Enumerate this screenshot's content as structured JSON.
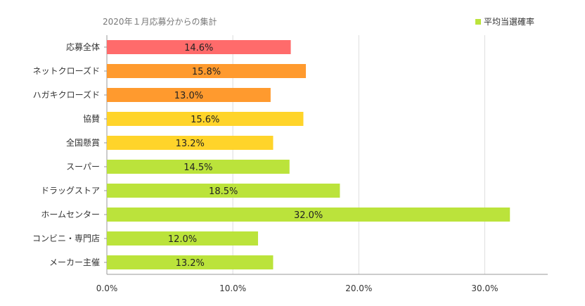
{
  "header": {
    "subtitle": "2020年１月応募分からの集計"
  },
  "legend": {
    "label": "平均当選確率",
    "color": "#bbe33b"
  },
  "chart_data": {
    "type": "bar",
    "orientation": "horizontal",
    "title": "",
    "xlabel": "",
    "ylabel": "",
    "xlim": [
      0,
      35
    ],
    "x_ticks": [
      "0.0%",
      "10.0%",
      "20.0%",
      "30.0%"
    ],
    "grid": "vertical",
    "legend_position": "top-right",
    "categories": [
      "応募全体",
      "ネットクローズド",
      "ハガキクローズド",
      "協賛",
      "全国懸賞",
      "スーパー",
      "ドラッグストア",
      "ホームセンター",
      "コンビニ・専門店",
      "メーカー主催"
    ],
    "values": [
      14.6,
      15.8,
      13.0,
      15.6,
      13.2,
      14.5,
      18.5,
      32.0,
      12.0,
      13.2
    ],
    "value_labels": [
      "14.6%",
      "15.8%",
      "13.0%",
      "15.6%",
      "13.2%",
      "14.5%",
      "18.5%",
      "32.0%",
      "12.0%",
      "13.2%"
    ],
    "colors": [
      "#ff6b6b",
      "#ff9a2e",
      "#ff9a2e",
      "#ffd42a",
      "#ffd42a",
      "#bbe33b",
      "#bbe33b",
      "#bbe33b",
      "#bbe33b",
      "#bbe33b"
    ],
    "series": [
      {
        "name": "平均当選確率"
      }
    ]
  }
}
